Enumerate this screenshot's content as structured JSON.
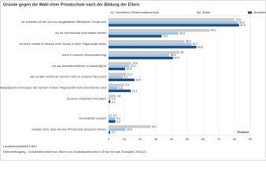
{
  "chart_data": {
    "type": "bar",
    "orientation": "horizontal",
    "title": "Gründe gegen die Wahl einer Privatschule nach der Bildung der Eltern",
    "categories": [
      "wir zufrieden mit der von uns ausgewählten öffentlichen Schule sind",
      "wir sie uns finanziell nicht leisten können",
      "wir keine Vorteile im Besuch einer Schule in freier Trägerschaft sehen",
      "keine in unserem Wohnumfeld liegt",
      "uns das Anmeldeverfahren zu aufwendig ist",
      "das soziale Umfeld der Schulen nicht zu unserem Kind passt",
      "wir mit dem pädagogischen Konzepten der Schulen in freier Trägerschaft nicht einverstanden sind",
      "sie einen schlechten Ruf haben",
      "Anmeldefrist verpasst",
      "wussten nicht, dass wir eine Privatschule besuchen können"
    ],
    "series": [
      {
        "name": "höchstens Realschulabschluss",
        "color": "#c9c9c9",
        "values": [
          79.8,
          64.2,
          48.2,
          45,
          14.4,
          11.2,
          9.9,
          4.6,
          2.0,
          26.7
        ],
        "value_labels": [
          "79,8",
          "64,2",
          "48,2",
          "45",
          "14,4",
          "11,2",
          "9,9",
          "4,6",
          "2,0",
          "26,7"
        ]
      },
      {
        "name": "Abitur",
        "color": "#9dc3e6",
        "values": [
          82.3,
          44.3,
          52.7,
          38.5,
          13.1,
          9.0,
          5.8,
          1.2,
          4.3,
          10.8
        ],
        "value_labels": [
          "82,3",
          "44,3",
          "52,7",
          "38,5",
          "13,1",
          "9,0",
          "5,8",
          "1,2",
          "4,3",
          "10,8"
        ]
      },
      {
        "name": "akademischer Abschluss",
        "color": "#1f4e79",
        "values": [
          82.9,
          33.7,
          55.8,
          40.9,
          10.5,
          16.4,
          14.1,
          1.1,
          4.3,
          1.0
        ],
        "value_labels": [
          "82,9",
          "33,7",
          "55,8",
          "40,9",
          "10,5",
          "16,4",
          "14,1",
          "1,1",
          "4,3",
          "1,0"
        ]
      }
    ],
    "xlabel": "Prozent",
    "xlim": [
      0,
      90
    ],
    "xticks": [
      0,
      10,
      20,
      30,
      40,
      50,
      60,
      70,
      80,
      90
    ],
    "grid": true,
    "source": "Landeshauptstadt Erfurt",
    "note": "Elternbefragung - Schulwahlmotive von Eltern von Erstklässlerinnen in Erfurt für das Schuljahr 2020/21"
  }
}
